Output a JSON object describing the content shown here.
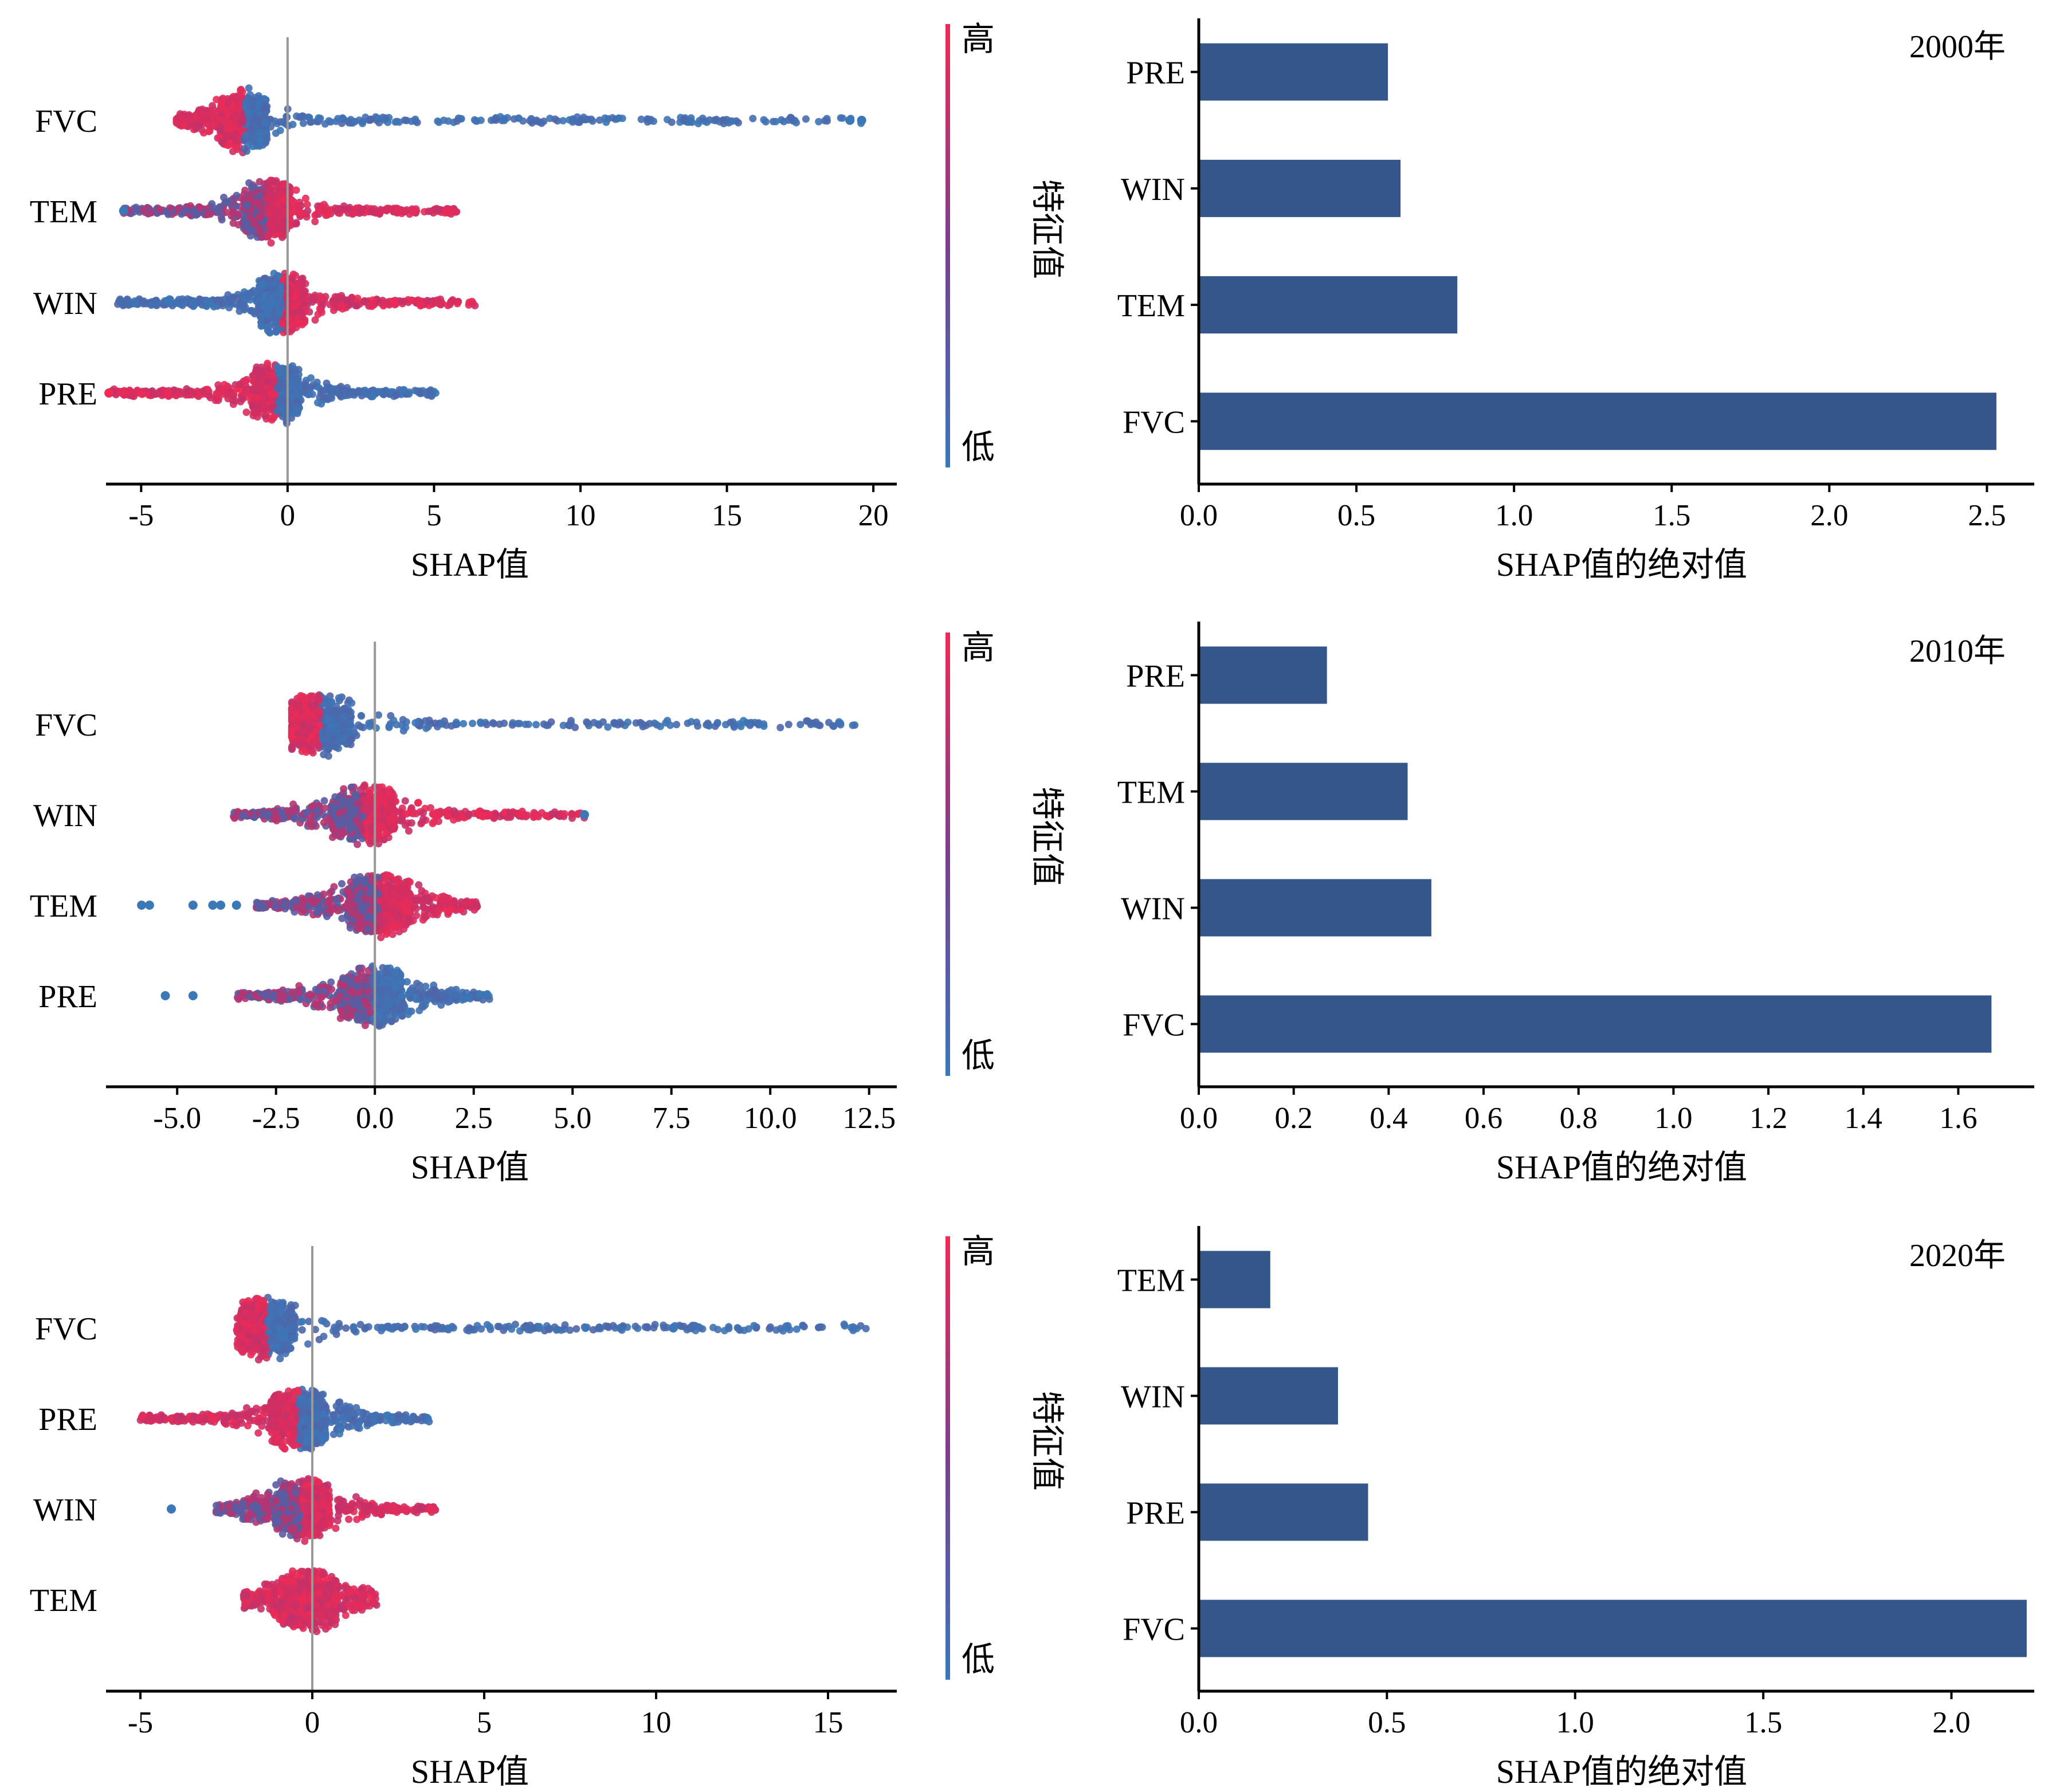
{
  "colors": {
    "bar": "#35568a",
    "high": "#ee2a55",
    "low": "#3a78b8",
    "mid": "#7a3f8c",
    "zero_line": "#999999"
  },
  "colorbar": {
    "high_label": "高",
    "low_label": "低",
    "title": "特征值"
  },
  "chart_data": [
    {
      "type": "scatter",
      "subtype": "shap-beeswarm",
      "xlabel": "SHAP值",
      "ylabel": "",
      "xlim": [
        -6.2,
        20.8
      ],
      "xticks": [
        -5,
        0,
        5,
        10,
        15,
        20
      ],
      "xtick_labels": [
        "-5",
        "0",
        "5",
        "10",
        "15",
        "20"
      ],
      "features": [
        {
          "name": "FVC",
          "min": -3.8,
          "max": 19.6,
          "center": -1.5,
          "low_side": "high",
          "high_side": "low",
          "outliers": [
            19.2,
            19.6
          ]
        },
        {
          "name": "TEM",
          "min": -5.6,
          "max": 5.8,
          "center": -0.7,
          "low_side": "mix",
          "high_side": "high",
          "outliers": [
            -5.6
          ]
        },
        {
          "name": "WIN",
          "min": -5.8,
          "max": 6.4,
          "center": -0.2,
          "low_side": "low",
          "high_side": "high",
          "outliers": []
        },
        {
          "name": "PRE",
          "min": -6.1,
          "max": 5.1,
          "center": -0.4,
          "low_side": "high",
          "high_side": "low",
          "outliers": [
            -6.1
          ]
        }
      ]
    },
    {
      "type": "bar",
      "orientation": "horizontal",
      "year": "2000年",
      "xlabel": "SHAP值的绝对值",
      "ylabel": "",
      "xlim": [
        0,
        2.65
      ],
      "xticks": [
        0.0,
        0.5,
        1.0,
        1.5,
        2.0,
        2.5
      ],
      "xtick_labels": [
        "0.0",
        "0.5",
        "1.0",
        "1.5",
        "2.0",
        "2.5"
      ],
      "categories": [
        "PRE",
        "WIN",
        "TEM",
        "FVC"
      ],
      "values": [
        0.6,
        0.64,
        0.82,
        2.53
      ]
    },
    {
      "type": "scatter",
      "subtype": "shap-beeswarm",
      "xlabel": "SHAP值",
      "ylabel": "",
      "xlim": [
        -6.8,
        13.2
      ],
      "xticks": [
        -5.0,
        -2.5,
        0.0,
        2.5,
        5.0,
        7.5,
        10.0,
        12.5
      ],
      "xtick_labels": [
        "-5.0",
        "-2.5",
        "0.0",
        "2.5",
        "5.0",
        "7.5",
        "10.0",
        "12.5"
      ],
      "features": [
        {
          "name": "FVC",
          "min": -2.1,
          "max": 12.2,
          "center": -1.4,
          "low_side": "high",
          "high_side": "low",
          "outliers": []
        },
        {
          "name": "WIN",
          "min": -3.6,
          "max": 5.3,
          "center": -0.3,
          "low_side": "mix",
          "high_side": "high",
          "outliers": [
            5.3
          ]
        },
        {
          "name": "TEM",
          "min": -3.0,
          "max": 2.6,
          "center": 0.1,
          "low_side": "mix",
          "high_side": "high",
          "outliers": [
            -5.9,
            -5.7,
            -4.6,
            -4.1,
            -3.9,
            -3.5
          ]
        },
        {
          "name": "PRE",
          "min": -3.5,
          "max": 2.9,
          "center": -0.1,
          "low_side": "mix",
          "high_side": "low",
          "outliers": [
            -5.3,
            -4.6
          ]
        }
      ]
    },
    {
      "type": "bar",
      "orientation": "horizontal",
      "year": "2010年",
      "xlabel": "SHAP值的绝对值",
      "ylabel": "",
      "xlim": [
        0,
        1.76
      ],
      "xticks": [
        0.0,
        0.2,
        0.4,
        0.6,
        0.8,
        1.0,
        1.2,
        1.4,
        1.6
      ],
      "xtick_labels": [
        "0.0",
        "0.2",
        "0.4",
        "0.6",
        "0.8",
        "1.0",
        "1.2",
        "1.4",
        "1.6"
      ],
      "categories": [
        "PRE",
        "TEM",
        "WIN",
        "FVC"
      ],
      "values": [
        0.27,
        0.44,
        0.49,
        1.67
      ]
    },
    {
      "type": "scatter",
      "subtype": "shap-beeswarm",
      "xlabel": "SHAP值",
      "ylabel": "",
      "xlim": [
        -6.0,
        17.0
      ],
      "xticks": [
        -5,
        0,
        5,
        10,
        15
      ],
      "xtick_labels": [
        "-5",
        "0",
        "5",
        "10",
        "15"
      ],
      "features": [
        {
          "name": "FVC",
          "min": -2.2,
          "max": 16.3,
          "center": -1.3,
          "low_side": "high",
          "high_side": "low",
          "outliers": [
            10.5
          ]
        },
        {
          "name": "PRE",
          "min": -5.0,
          "max": 3.4,
          "center": -0.4,
          "low_side": "high",
          "high_side": "low",
          "outliers": []
        },
        {
          "name": "WIN",
          "min": -2.8,
          "max": 3.6,
          "center": -0.3,
          "low_side": "mix",
          "high_side": "high",
          "outliers": [
            -4.1
          ]
        },
        {
          "name": "TEM",
          "min": -2.0,
          "max": 1.9,
          "center": -0.1,
          "low_side": "high",
          "high_side": "high",
          "outliers": []
        }
      ]
    },
    {
      "type": "bar",
      "orientation": "horizontal",
      "year": "2020年",
      "xlabel": "SHAP值的绝对值",
      "ylabel": "",
      "xlim": [
        0,
        2.22
      ],
      "xticks": [
        0.0,
        0.5,
        1.0,
        1.5,
        2.0
      ],
      "xtick_labels": [
        "0.0",
        "0.5",
        "1.0",
        "1.5",
        "2.0"
      ],
      "categories": [
        "TEM",
        "WIN",
        "PRE",
        "FVC"
      ],
      "values": [
        0.19,
        0.37,
        0.45,
        2.2
      ]
    }
  ]
}
